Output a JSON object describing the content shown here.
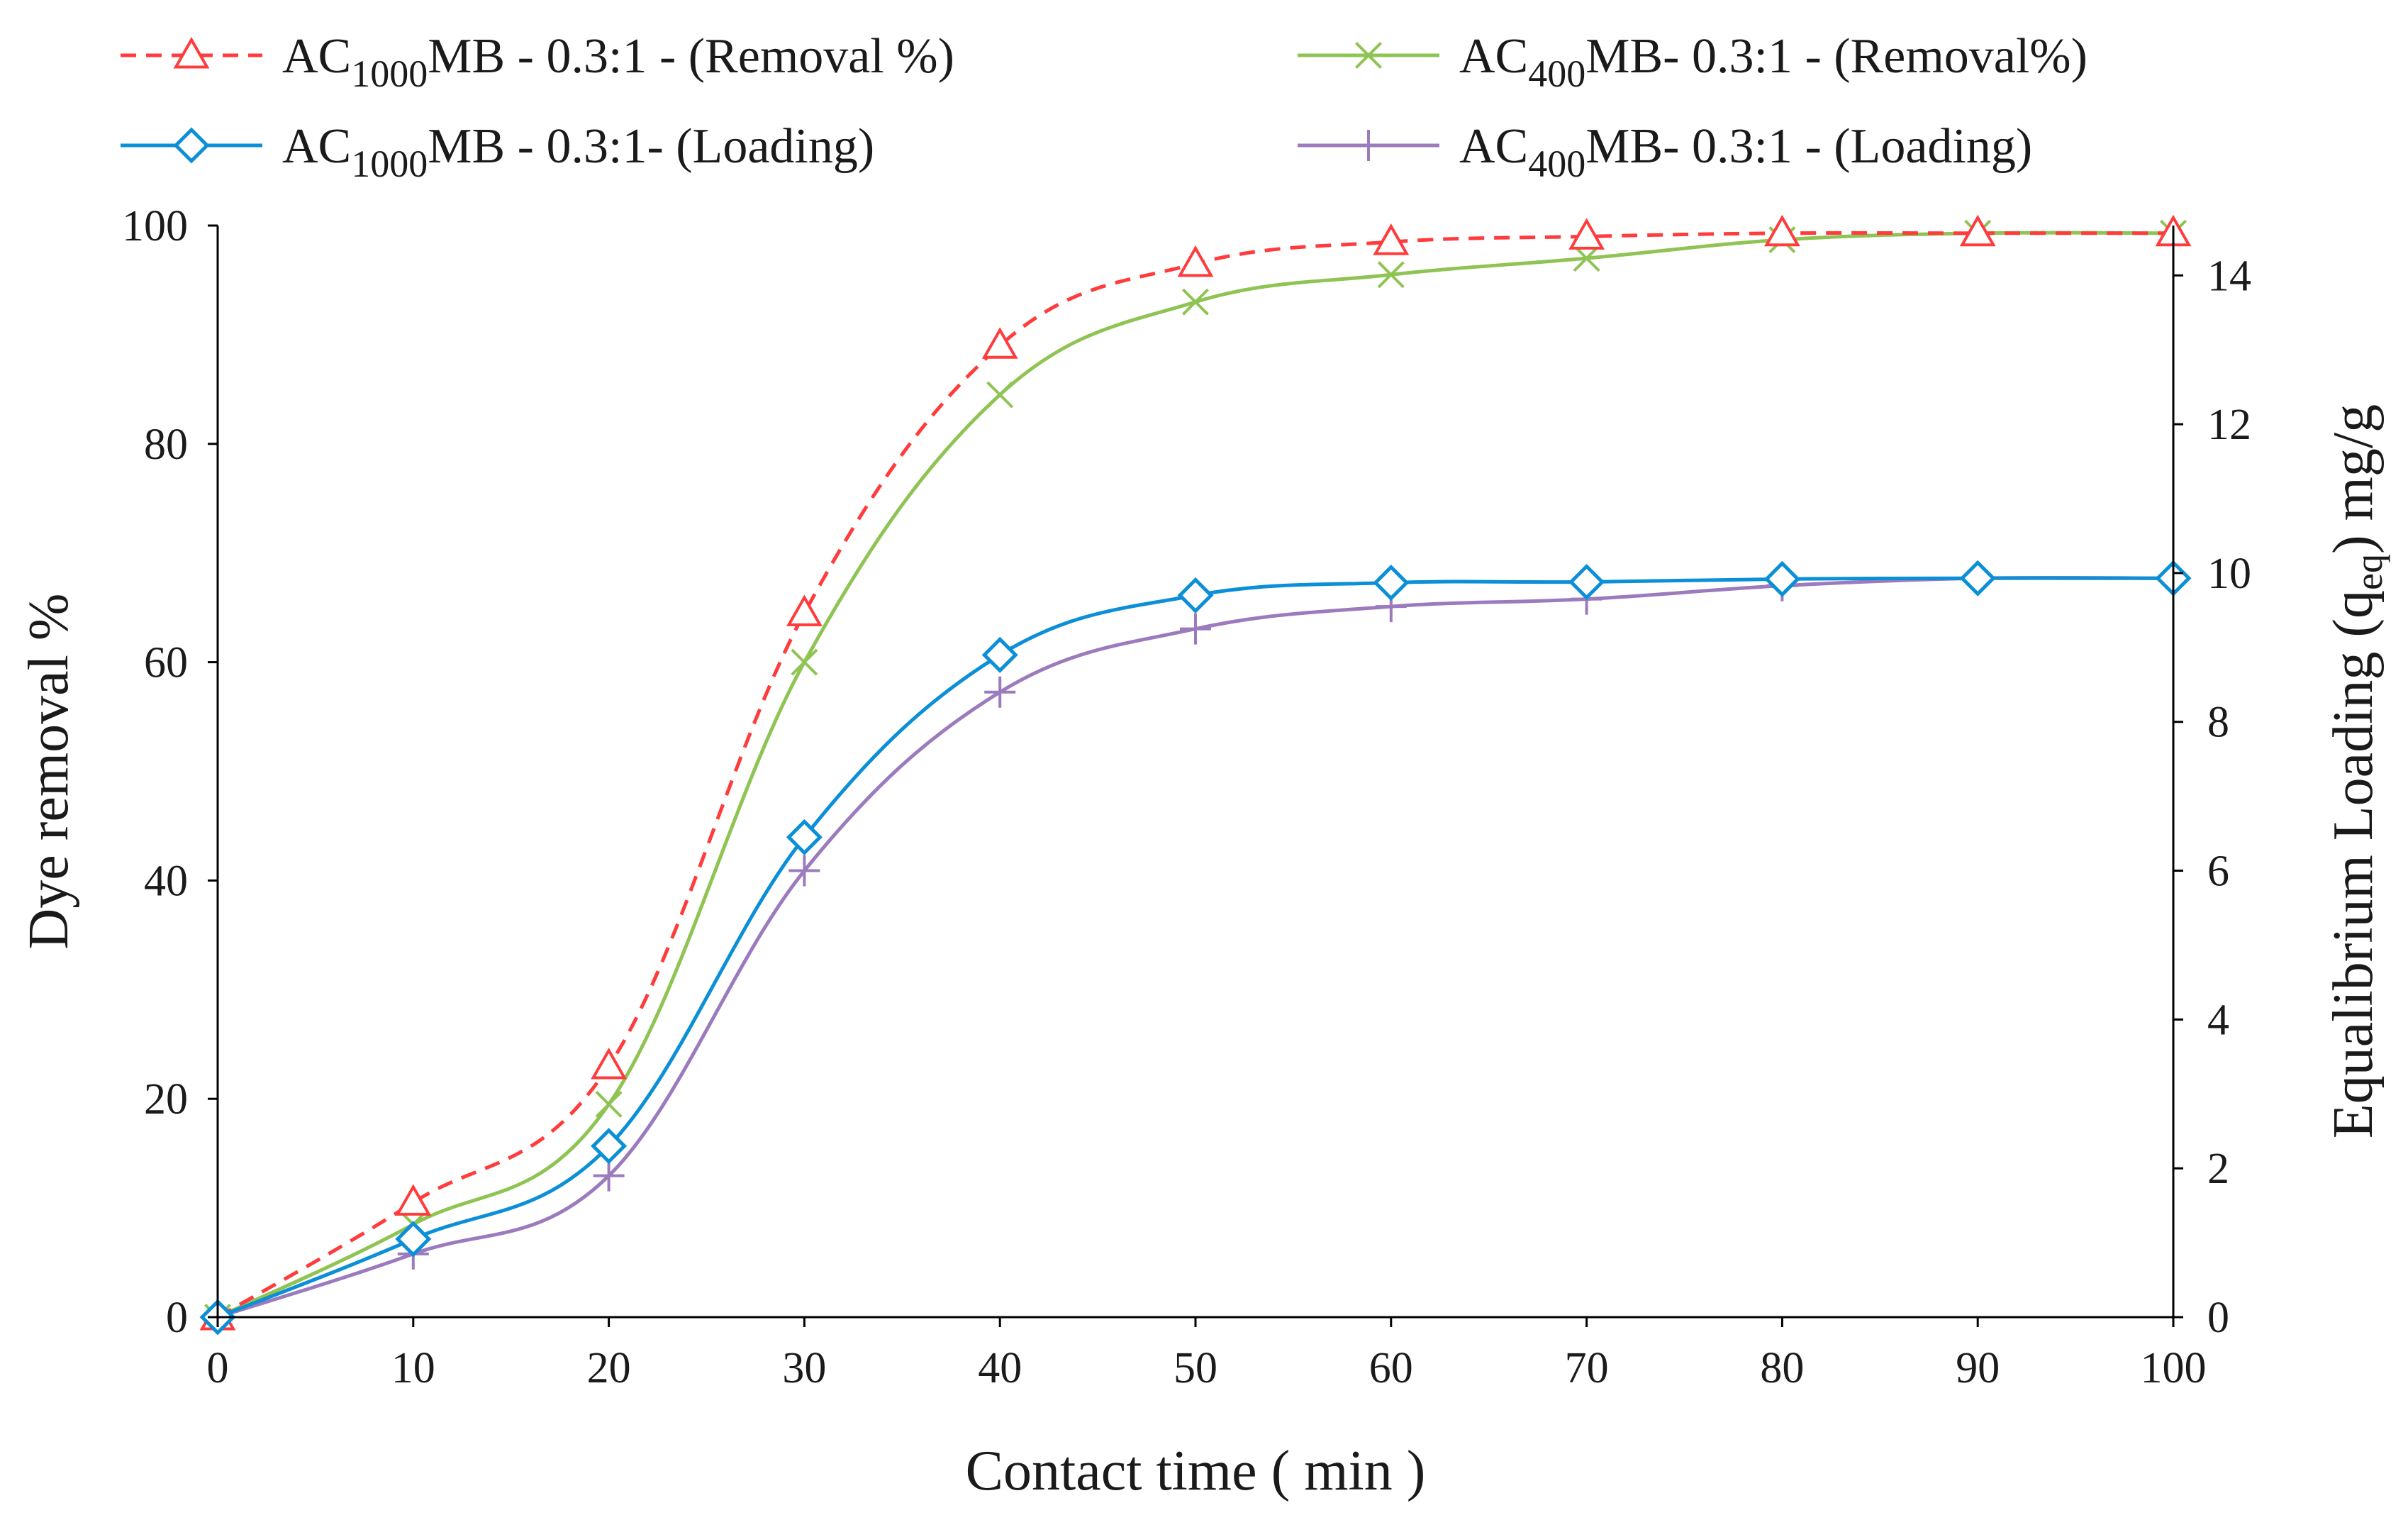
{
  "chart_data": {
    "type": "line",
    "title": "",
    "xlabel": "Contact time ( min )",
    "ylabel": "Dye removal %",
    "y2label_parts": [
      "Equalibrium Loading (q",
      "eq",
      ") mg/g"
    ],
    "x": [
      0,
      10,
      20,
      30,
      40,
      50,
      60,
      70,
      80,
      90,
      100
    ],
    "xlim": [
      0,
      100
    ],
    "ylim": [
      0,
      100
    ],
    "y2lim": [
      0,
      14.67
    ],
    "xticks": [
      "0",
      "10",
      "20",
      "30",
      "40",
      "50",
      "60",
      "70",
      "80",
      "90",
      "100"
    ],
    "yticks": [
      "0",
      "20",
      "40",
      "60",
      "80",
      "100"
    ],
    "y2ticks": [
      "0",
      "2",
      "4",
      "6",
      "8",
      "10",
      "12",
      "14"
    ],
    "grid": false,
    "legend_position": "top",
    "series": [
      {
        "name": "AC1000MB - 0.3:1 - (Removal %)",
        "label_parts": [
          "AC",
          "1000",
          "MB - 0.3:1 - (Removal %)"
        ],
        "axis": "left",
        "color": "#ff3b3b",
        "dash": true,
        "marker": "triangle",
        "values": [
          0,
          10.5,
          23,
          64.5,
          89,
          96.5,
          98.5,
          99,
          99.3,
          99.3,
          99.3
        ]
      },
      {
        "name": "AC1000MB - 0.3:1- (Loading)",
        "label_parts": [
          "AC",
          "1000",
          "MB - 0.3:1- (Loading)"
        ],
        "axis": "right",
        "color": "#0b8fd6",
        "dash": false,
        "marker": "diamond",
        "values": [
          0,
          1.05,
          2.3,
          6.45,
          8.9,
          9.7,
          9.87,
          9.88,
          9.92,
          9.93,
          9.93
        ]
      },
      {
        "name": "AC400MB- 0.3:1 - (Removal%)",
        "label_parts": [
          "AC",
          "400",
          "MB- 0.3:1 - (Removal%)"
        ],
        "axis": "left",
        "color": "#8fc454",
        "dash": false,
        "marker": "x",
        "values": [
          0,
          8.5,
          19.5,
          60,
          84.5,
          93,
          95.5,
          97,
          98.7,
          99.3,
          99.3
        ]
      },
      {
        "name": "AC400MB- 0.3:1 - (Loading)",
        "label_parts": [
          "AC",
          "400",
          "MB- 0.3:1 - (Loading)"
        ],
        "axis": "right",
        "color": "#9b7bbd",
        "dash": false,
        "marker": "plus",
        "values": [
          0,
          0.85,
          1.9,
          6.0,
          8.4,
          9.25,
          9.55,
          9.65,
          9.83,
          9.93,
          9.93
        ]
      }
    ]
  }
}
